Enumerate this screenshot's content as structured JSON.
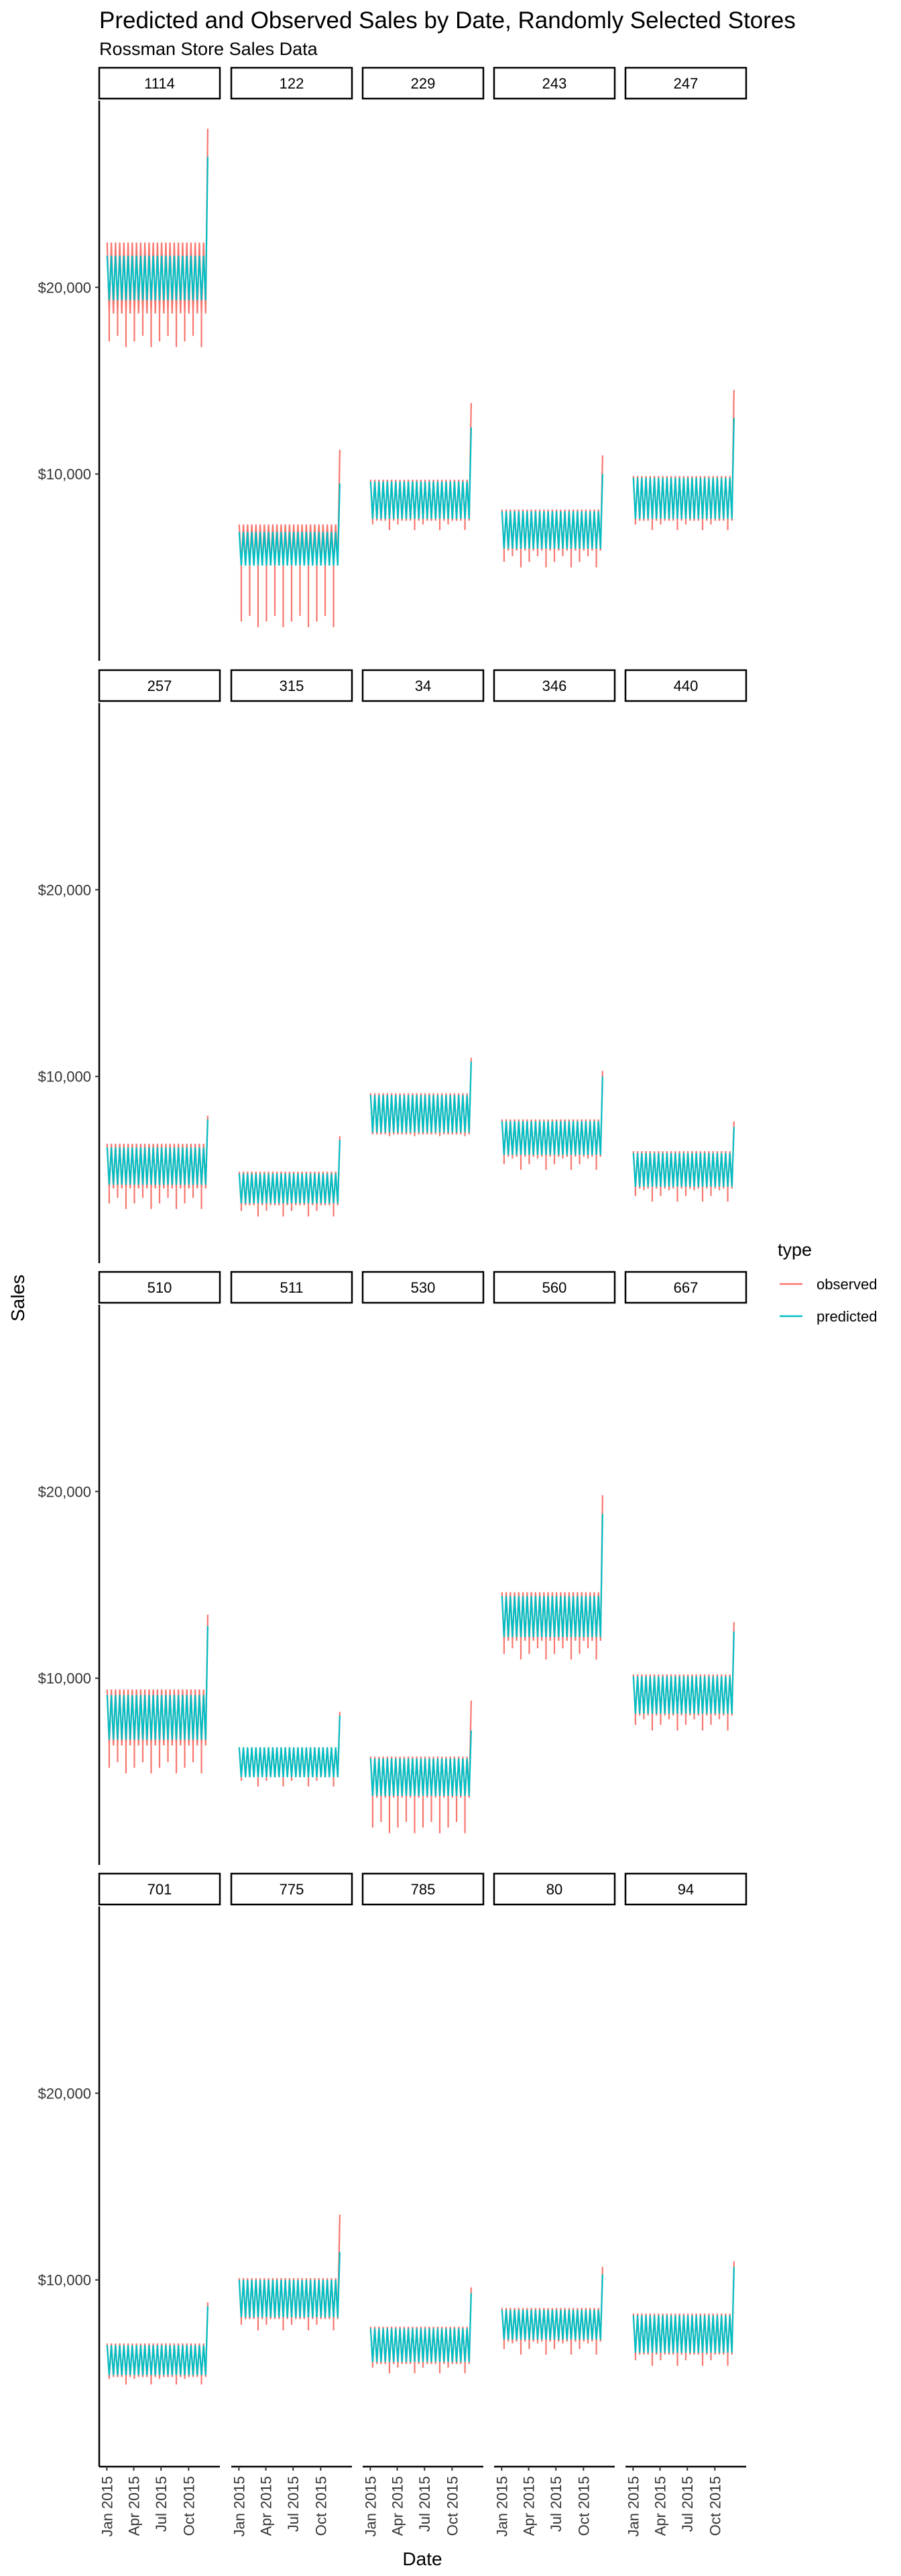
{
  "chart_data": {
    "type": "line",
    "title": "Predicted and Observed Sales by Date, Randomly Selected Stores",
    "subtitle": "Rossman Store Sales Data",
    "xlabel": "Date",
    "ylabel": "Sales",
    "x_ticks": [
      "Jan 2015",
      "Apr 2015",
      "Jul 2015",
      "Oct 2015"
    ],
    "x_tick_values": [
      "2015-01-01",
      "2015-04-01",
      "2015-07-01",
      "2015-10-01"
    ],
    "xlim": [
      "2014-12-20",
      "2015-12-31"
    ],
    "y_ticks": [
      10000,
      20000
    ],
    "y_tick_labels": [
      "$10,000",
      "$20,000"
    ],
    "ylim": [
      0,
      30000
    ],
    "legend": {
      "title": "type",
      "placement": "right",
      "entries": [
        {
          "label": "observed",
          "color": "#F8766D"
        },
        {
          "label": "predicted",
          "color": "#00BFC4"
        }
      ]
    },
    "facet_layout": {
      "rows": 4,
      "cols": 5
    },
    "stores": [
      {
        "store": "1114",
        "observed_level": 20500,
        "observed_amp": 1900,
        "observed_min": 16800,
        "observed_max": 28500,
        "predicted_level": 20500,
        "predicted_amp": 1200,
        "predicted_max": 27000
      },
      {
        "store": "122",
        "observed_level": 6200,
        "observed_amp": 1100,
        "observed_min": 1800,
        "observed_max": 11300,
        "predicted_level": 6000,
        "predicted_amp": 900,
        "predicted_max": 9500
      },
      {
        "store": "229",
        "observed_level": 8600,
        "observed_amp": 1100,
        "observed_min": 7000,
        "observed_max": 13800,
        "predicted_level": 8600,
        "predicted_amp": 1000,
        "predicted_max": 12500
      },
      {
        "store": "243",
        "observed_level": 7000,
        "observed_amp": 1100,
        "observed_min": 5000,
        "observed_max": 11000,
        "predicted_level": 7000,
        "predicted_amp": 1000,
        "predicted_max": 10000
      },
      {
        "store": "247",
        "observed_level": 8700,
        "observed_amp": 1200,
        "observed_min": 7000,
        "observed_max": 14500,
        "predicted_level": 8700,
        "predicted_amp": 1100,
        "predicted_max": 13000
      },
      {
        "store": "257",
        "observed_level": 5200,
        "observed_amp": 1200,
        "observed_min": 2900,
        "observed_max": 7900,
        "predicted_level": 5200,
        "predicted_amp": 1000,
        "predicted_max": 7700
      },
      {
        "store": "315",
        "observed_level": 4000,
        "observed_amp": 900,
        "observed_min": 2500,
        "observed_max": 6800,
        "predicted_level": 4000,
        "predicted_amp": 800,
        "predicted_max": 6600
      },
      {
        "store": "34",
        "observed_level": 8000,
        "observed_amp": 1100,
        "observed_min": 6800,
        "observed_max": 11000,
        "predicted_level": 8000,
        "predicted_amp": 1000,
        "predicted_max": 10800
      },
      {
        "store": "346",
        "observed_level": 6700,
        "observed_amp": 1000,
        "observed_min": 5000,
        "observed_max": 10300,
        "predicted_level": 6700,
        "predicted_amp": 900,
        "predicted_max": 10000
      },
      {
        "store": "440",
        "observed_level": 5000,
        "observed_amp": 1000,
        "observed_min": 3300,
        "observed_max": 7600,
        "predicted_level": 5000,
        "predicted_amp": 900,
        "predicted_max": 7300
      },
      {
        "store": "510",
        "observed_level": 7900,
        "observed_amp": 1500,
        "observed_min": 4900,
        "observed_max": 13400,
        "predicted_level": 7900,
        "predicted_amp": 1200,
        "predicted_max": 12800
      },
      {
        "store": "511",
        "observed_level": 5500,
        "observed_amp": 800,
        "observed_min": 4200,
        "observed_max": 8200,
        "predicted_level": 5500,
        "predicted_amp": 800,
        "predicted_max": 8000
      },
      {
        "store": "530",
        "observed_level": 4700,
        "observed_amp": 1100,
        "observed_min": 1700,
        "observed_max": 8800,
        "predicted_level": 4700,
        "predicted_amp": 1000,
        "predicted_max": 7200
      },
      {
        "store": "560",
        "observed_level": 13300,
        "observed_amp": 1300,
        "observed_min": 11000,
        "observed_max": 19800,
        "predicted_level": 13300,
        "predicted_amp": 1100,
        "predicted_max": 18800
      },
      {
        "store": "667",
        "observed_level": 9100,
        "observed_amp": 1100,
        "observed_min": 7200,
        "observed_max": 13000,
        "predicted_level": 9100,
        "predicted_amp": 1000,
        "predicted_max": 12500
      },
      {
        "store": "701",
        "observed_level": 5700,
        "observed_amp": 900,
        "observed_min": 4400,
        "observed_max": 8800,
        "predicted_level": 5700,
        "predicted_amp": 800,
        "predicted_max": 8600
      },
      {
        "store": "775",
        "observed_level": 9000,
        "observed_amp": 1100,
        "observed_min": 7300,
        "observed_max": 13500,
        "predicted_level": 9000,
        "predicted_amp": 1000,
        "predicted_max": 11500
      },
      {
        "store": "785",
        "observed_level": 6500,
        "observed_amp": 1000,
        "observed_min": 5000,
        "observed_max": 9600,
        "predicted_level": 6500,
        "predicted_amp": 900,
        "predicted_max": 9300
      },
      {
        "store": "80",
        "observed_level": 7600,
        "observed_amp": 900,
        "observed_min": 6000,
        "observed_max": 10700,
        "predicted_level": 7600,
        "predicted_amp": 800,
        "predicted_max": 10300
      },
      {
        "store": "94",
        "observed_level": 7100,
        "observed_amp": 1100,
        "observed_min": 5400,
        "observed_max": 11000,
        "predicted_level": 7100,
        "predicted_amp": 1000,
        "predicted_max": 10700
      }
    ]
  }
}
